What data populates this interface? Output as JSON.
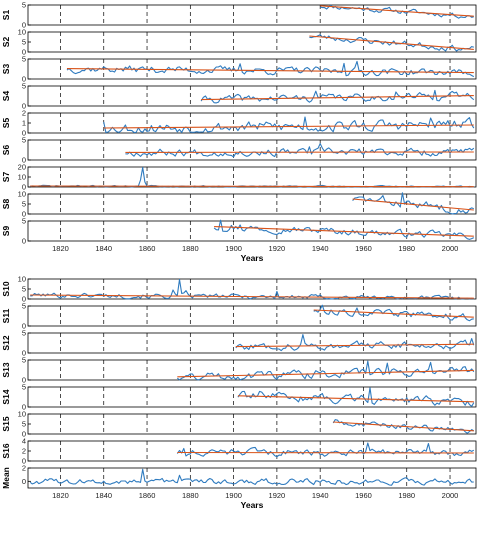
{
  "figure": {
    "colors": {
      "data": "#2f7bbf",
      "trend": "#d95319",
      "axis": "#000000",
      "grid": "#000000"
    },
    "x_range": [
      1805,
      2012
    ],
    "year_ticks": [
      1820,
      1840,
      1860,
      1880,
      1900,
      1920,
      1940,
      1960,
      1980,
      2000
    ]
  },
  "chart_data": [
    {
      "type": "line",
      "group": "top",
      "panels": [
        {
          "label": "S1",
          "ylim": [
            0,
            5
          ],
          "yticks": [
            0,
            5
          ],
          "start": 1940,
          "trend": [
            4.8,
            2.2
          ],
          "mean": 3.2,
          "noise": 0.55,
          "seed": 11
        },
        {
          "label": "S2",
          "ylim": [
            0,
            10
          ],
          "yticks": [
            0,
            5,
            10
          ],
          "start": 1935,
          "trend": [
            8.0,
            1.3
          ],
          "mean": 3.0,
          "noise": 1.3,
          "seed": 23
        },
        {
          "label": "S3",
          "ylim": [
            0,
            5
          ],
          "yticks": [
            0,
            5
          ],
          "start": 1823,
          "trend": [
            2.6,
            1.6
          ],
          "mean": 2.2,
          "noise": 0.75,
          "seed": 37,
          "spikes": [
            [
              1903,
              3.8
            ],
            [
              1957,
              4.4
            ],
            [
              1951,
              3.9
            ]
          ]
        },
        {
          "label": "S4",
          "ylim": [
            0,
            5
          ],
          "yticks": [
            0,
            5
          ],
          "start": 1885,
          "trend": [
            1.6,
            2.6
          ],
          "mean": 2.1,
          "noise": 0.75,
          "seed": 41,
          "spikes": [
            [
              1938,
              3.7
            ],
            [
              1975,
              3.5
            ],
            [
              1993,
              3.9
            ]
          ]
        },
        {
          "label": "S5",
          "ylim": [
            0,
            2
          ],
          "yticks": [
            0,
            1,
            2
          ],
          "start": 1840,
          "trend": [
            0.5,
            0.8
          ],
          "mean": 0.7,
          "noise": 0.45,
          "seed": 53,
          "spikes": [
            [
              1840,
              1.1
            ],
            [
              1933,
              1.6
            ],
            [
              1991,
              1.5
            ]
          ]
        },
        {
          "label": "S6",
          "ylim": [
            0,
            5
          ],
          "yticks": [
            0,
            5
          ],
          "start": 1850,
          "trend": [
            1.9,
            2.0
          ],
          "mean": 2.0,
          "noise": 0.75,
          "seed": 67,
          "spikes": [
            [
              1940,
              4.1
            ],
            [
              1935,
              3.3
            ]
          ]
        },
        {
          "label": "S7",
          "ylim": [
            0,
            20
          ],
          "yticks": [
            0,
            10,
            20
          ],
          "start": 1806,
          "trend": [
            1.0,
            0.3
          ],
          "mean": 0.7,
          "noise": 0.6,
          "seed": 71,
          "spikes": [
            [
              1858,
              19.5
            ],
            [
              1857,
              7.0
            ],
            [
              1859,
              5.0
            ]
          ]
        },
        {
          "label": "S8",
          "ylim": [
            0,
            10
          ],
          "yticks": [
            0,
            5,
            10
          ],
          "start": 1955,
          "trend": [
            7.5,
            2.0
          ],
          "mean": 5.0,
          "noise": 1.7,
          "seed": 83,
          "spikes": [
            [
              1978,
              10.6
            ],
            [
              1969,
              9.2
            ]
          ]
        },
        {
          "label": "S9",
          "ylim": [
            0,
            5
          ],
          "yticks": [
            0,
            5
          ],
          "start": 1891,
          "trend": [
            3.6,
            1.2
          ],
          "mean": 1.8,
          "noise": 0.7,
          "seed": 97,
          "spikes": [
            [
              1894,
              5.2
            ],
            [
              1903,
              4.0
            ],
            [
              1899,
              3.9
            ]
          ]
        }
      ],
      "xlabel": "Years"
    },
    {
      "type": "line",
      "group": "bottom",
      "panels": [
        {
          "label": "S10",
          "ylim": [
            0,
            10
          ],
          "yticks": [
            0,
            5,
            10
          ],
          "start": 1806,
          "trend": [
            2.0,
            0.4
          ],
          "mean": 1.4,
          "noise": 1.0,
          "seed": 101,
          "spikes": [
            [
              1875,
              9.8
            ],
            [
              1872,
              4.5
            ],
            [
              1878,
              4.2
            ],
            [
              1920,
              3.8
            ]
          ]
        },
        {
          "label": "S11",
          "ylim": [
            0,
            5
          ],
          "yticks": [
            0,
            5
          ],
          "start": 1937,
          "trend": [
            4.0,
            2.2
          ],
          "mean": 3.0,
          "noise": 0.7,
          "seed": 113,
          "spikes": [
            [
              1941,
              5.2
            ],
            [
              1957,
              4.5
            ]
          ]
        },
        {
          "label": "S12",
          "ylim": [
            0,
            5
          ],
          "yticks": [
            0,
            5
          ],
          "start": 1901,
          "trend": [
            1.6,
            2.2
          ],
          "mean": 1.9,
          "noise": 0.75,
          "seed": 127,
          "spikes": [
            [
              1932,
              4.6
            ],
            [
              2010,
              3.6
            ]
          ]
        },
        {
          "label": "S13",
          "ylim": [
            0,
            5
          ],
          "yticks": [
            0,
            5
          ],
          "start": 1874,
          "trend": [
            0.8,
            2.4
          ],
          "mean": 1.6,
          "noise": 0.85,
          "seed": 131,
          "spikes": [
            [
              1962,
              4.7
            ],
            [
              1991,
              4.4
            ],
            [
              1971,
              4.2
            ]
          ]
        },
        {
          "label": "S14",
          "ylim": [
            0,
            5
          ],
          "yticks": [
            0,
            5
          ],
          "start": 1902,
          "trend": [
            2.8,
            1.3
          ],
          "mean": 2.1,
          "noise": 0.85,
          "seed": 139,
          "spikes": [
            [
              1963,
              4.8
            ],
            [
              1912,
              3.9
            ]
          ]
        },
        {
          "label": "S15",
          "ylim": [
            0,
            10
          ],
          "yticks": [
            0,
            5,
            10
          ],
          "start": 1946,
          "trend": [
            6.0,
            1.6
          ],
          "mean": 3.5,
          "noise": 1.2,
          "seed": 149,
          "spikes": [
            [
              1947,
              7.2
            ]
          ]
        },
        {
          "label": "S16",
          "ylim": [
            0,
            4
          ],
          "yticks": [
            0,
            2,
            4
          ],
          "start": 1874,
          "trend": [
            1.7,
            1.6
          ],
          "mean": 1.7,
          "noise": 0.55,
          "seed": 151,
          "spikes": [
            [
              1877,
              2.5
            ],
            [
              1962,
              3.6
            ],
            [
              1990,
              3.5
            ]
          ]
        },
        {
          "label": "Mean",
          "ylim": [
            -1,
            2
          ],
          "yticks": [
            0,
            2
          ],
          "start": 1806,
          "trend": null,
          "mean": 0.0,
          "noise": 0.35,
          "seed": 163,
          "spikes": [
            [
              1858,
              1.8
            ],
            [
              1875,
              0.9
            ]
          ]
        }
      ],
      "xlabel": "Years"
    }
  ]
}
